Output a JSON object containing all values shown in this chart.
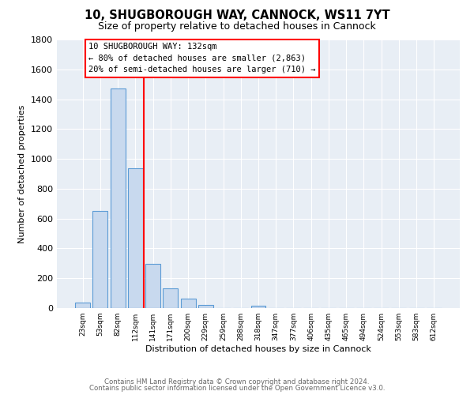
{
  "title": "10, SHUGBOROUGH WAY, CANNOCK, WS11 7YT",
  "subtitle": "Size of property relative to detached houses in Cannock",
  "xlabel": "Distribution of detached houses by size in Cannock",
  "ylabel": "Number of detached properties",
  "bar_labels": [
    "23sqm",
    "53sqm",
    "82sqm",
    "112sqm",
    "141sqm",
    "171sqm",
    "200sqm",
    "229sqm",
    "259sqm",
    "288sqm",
    "318sqm",
    "347sqm",
    "377sqm",
    "406sqm",
    "435sqm",
    "465sqm",
    "494sqm",
    "524sqm",
    "553sqm",
    "583sqm",
    "612sqm"
  ],
  "bar_values": [
    35,
    650,
    1470,
    935,
    295,
    130,
    65,
    20,
    0,
    0,
    15,
    0,
    0,
    0,
    0,
    0,
    0,
    0,
    0,
    0,
    0
  ],
  "bar_color": "#c8d9ee",
  "bar_edge_color": "#5b9bd5",
  "vline_color": "red",
  "ylim": [
    0,
    1800
  ],
  "yticks": [
    0,
    200,
    400,
    600,
    800,
    1000,
    1200,
    1400,
    1600,
    1800
  ],
  "annotation_title": "10 SHUGBOROUGH WAY: 132sqm",
  "annotation_line1": "← 80% of detached houses are smaller (2,863)",
  "annotation_line2": "20% of semi-detached houses are larger (710) →",
  "annotation_box_color": "white",
  "annotation_box_edge": "red",
  "footer_line1": "Contains HM Land Registry data © Crown copyright and database right 2024.",
  "footer_line2": "Contains public sector information licensed under the Open Government Licence v3.0.",
  "background_color": "#ffffff",
  "plot_bg_color": "#e8eef5",
  "grid_color": "#ffffff"
}
